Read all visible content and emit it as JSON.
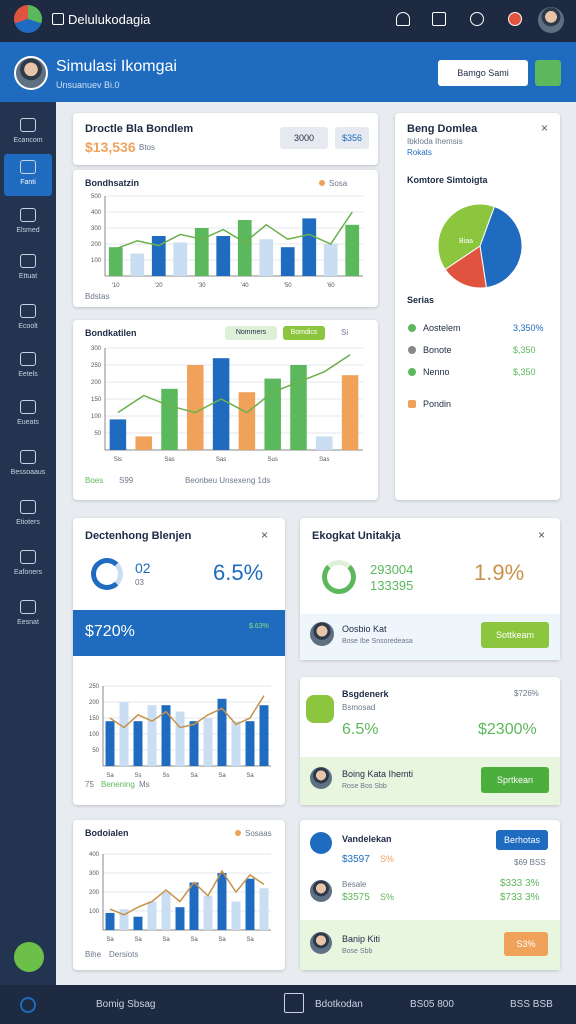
{
  "topbar": {
    "brand": "Delulukodagia"
  },
  "header": {
    "title": "Simulasi Ikomgai",
    "subtitle": "Unsuanuev Bi.0",
    "button": "Bamgo Sami"
  },
  "sidebar": {
    "items": [
      "Ecancom",
      "Fanti",
      "Elsmed",
      "Ettuat",
      "Ecoolt",
      "Eetels",
      "Eueats",
      "Bessoaaus",
      "Etioters",
      "Eafoners",
      "Eesnat"
    ]
  },
  "summary": {
    "title": "Droctle Bla Bondlem",
    "value": "$13,536",
    "note": "Btos",
    "buttons": [
      "3000",
      "$356"
    ]
  },
  "chart1": {
    "title": "Bondhsatzin",
    "legend": "Sosa",
    "footer": "Bdstas",
    "ylim": [
      0,
      500
    ],
    "yticks": [
      100,
      200,
      300,
      400,
      500
    ],
    "categories": [
      "'10",
      null,
      "'20",
      null,
      "'30",
      null,
      "'40",
      null,
      "'50",
      null,
      "'60",
      null
    ],
    "bars": [
      180,
      140,
      250,
      210,
      300,
      250,
      350,
      230,
      180,
      360,
      200,
      320
    ],
    "bar_colors": [
      "#5cb85c",
      "#c9def2",
      "#1e6bbf",
      "#c9def2",
      "#5cb85c",
      "#1e6bbf",
      "#5cb85c",
      "#c9def2",
      "#1e6bbf",
      "#1e6bbf",
      "#c9def2",
      "#5cb85c"
    ],
    "line": [
      170,
      220,
      190,
      260,
      230,
      290,
      210,
      320,
      230,
      260,
      200,
      400
    ],
    "line_color": "#6ab04c"
  },
  "chart2": {
    "title": "Bondkatilen",
    "legend": [
      "Nommers",
      "Bomdics",
      "Si"
    ],
    "footer": [
      "Boes",
      "S99",
      "Beonbeu Unsexeng 1ds"
    ],
    "ylim": [
      0,
      300
    ],
    "yticks": [
      50,
      100,
      150,
      200,
      250,
      300
    ],
    "categories": [
      "Sis",
      null,
      "Sas",
      null,
      "Sas",
      null,
      "Sus",
      null,
      "Sas",
      null
    ],
    "bars": [
      90,
      40,
      180,
      250,
      270,
      170,
      210,
      250,
      40,
      220
    ],
    "bar_colors": [
      "#1e6bbf",
      "#f0a25a",
      "#5cb85c",
      "#f0a25a",
      "#1e6bbf",
      "#f0a25a",
      "#5cb85c",
      "#5cb85c",
      "#c9def2",
      "#f0a25a"
    ],
    "line": [
      110,
      160,
      130,
      110,
      150,
      110,
      170,
      200,
      230,
      280
    ],
    "line_color": "#6ab04c"
  },
  "chart3": {
    "footer": [
      "75",
      "Benening",
      "Ms"
    ],
    "ylim": [
      0,
      250
    ],
    "yticks": [
      50,
      100,
      150,
      200,
      250
    ],
    "categories": [
      "Sa",
      null,
      "Ss",
      null,
      "Ss",
      null,
      "Sa",
      null,
      "Sa",
      null,
      "Sa",
      null
    ],
    "bars": [
      140,
      200,
      140,
      190,
      190,
      170,
      140,
      150,
      210,
      140,
      140,
      190
    ],
    "bar_colors": [
      "#1e6bbf",
      "#c9def2",
      "#1e6bbf",
      "#c9def2",
      "#1e6bbf",
      "#c9def2",
      "#1e6bbf",
      "#c9def2",
      "#1e6bbf",
      "#c9def2",
      "#1e6bbf",
      "#1e6bbf"
    ],
    "line": [
      150,
      120,
      160,
      140,
      170,
      120,
      130,
      160,
      180,
      130,
      150,
      220
    ],
    "line_color": "#c8924a"
  },
  "chart4": {
    "title": "Bodoialen",
    "legend": "Sosaas",
    "footer": [
      "Bihe",
      "Dersiots"
    ],
    "ylim": [
      0,
      400
    ],
    "yticks": [
      100,
      200,
      300,
      400
    ],
    "categories": [
      "Sa",
      null,
      "Sa",
      null,
      "Sa",
      null,
      "Sa",
      null,
      "Sa",
      null,
      "Sa",
      null
    ],
    "bars": [
      90,
      110,
      70,
      150,
      200,
      120,
      250,
      180,
      300,
      150,
      270,
      220
    ],
    "bar_colors": [
      "#1e6bbf",
      "#c9def2",
      "#1e6bbf",
      "#c9def2",
      "#c9def2",
      "#1e6bbf",
      "#1e6bbf",
      "#c9def2",
      "#1e6bbf",
      "#c9def2",
      "#1e6bbf",
      "#c9def2"
    ],
    "line": [
      110,
      80,
      120,
      150,
      210,
      150,
      250,
      180,
      310,
      200,
      290,
      240
    ],
    "line_color": "#c8924a"
  },
  "right": {
    "title": "Beng Domlea",
    "subtitle": "Ibkloda Ihemsis",
    "tag": "Rokats",
    "section": "Komtore Simtoigta",
    "list_title": "Serias",
    "pie": {
      "values": [
        42,
        18,
        40
      ],
      "colors": [
        "#1e6bbf",
        "#e0533f",
        "#8cc63f"
      ],
      "label": "Biaa"
    },
    "rows": [
      {
        "name": "Aostelem",
        "value": "3,350%"
      },
      {
        "name": "Bonote",
        "value": "$,350"
      },
      {
        "name": "Nenno",
        "value": "$,350"
      },
      {
        "name": "Pondin"
      }
    ]
  },
  "card4": {
    "title": "Dectenhong Blenjen",
    "small": "02",
    "sub": "03",
    "value": "6.5%",
    "banner": "$720%",
    "banner_note": "$.63%"
  },
  "card5": {
    "title": "Ekogkat Unitakja",
    "a": "293004",
    "b": "133395",
    "value": "1.9%",
    "person": "Oosbio Kat",
    "person_note": "Bose Ibe Snsoredeasa",
    "button": "Sottkeam"
  },
  "card6": {
    "title": "Bsgdenerk",
    "sub": "Bsmosad",
    "corner": "$726%",
    "a": "6.5%",
    "b": "$2300%",
    "person": "Boing Kata Ihemti",
    "person_note": "Rose Bos Sbb",
    "button": "Sprtkean"
  },
  "card7": {
    "title": "Vandelekan",
    "button": "Berhotas",
    "note": "$69 BSS",
    "rows": [
      {
        "a": "$3597",
        "b": "S%",
        "c": ""
      },
      {
        "a": "Besale",
        "b": "$333 3%"
      },
      {
        "a": "$3575",
        "b": "$733 3%",
        "c": "S%"
      }
    ],
    "last": {
      "name": "Banip Kiti",
      "note": "Bose Sbb",
      "value": "S3%"
    }
  },
  "bottombar": {
    "left": "Bomig Sbsag",
    "mid": "Bdotkodan",
    "mid2": "BS05 800",
    "right": "BSS BSB"
  }
}
